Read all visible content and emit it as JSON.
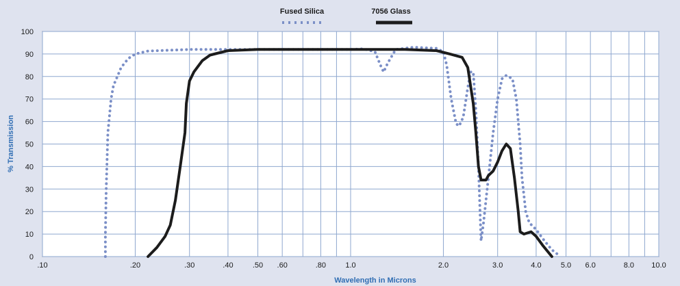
{
  "chart_data": {
    "type": "line",
    "title": "",
    "xlabel": "Wavelength in Microns",
    "ylabel": "% Transmission",
    "x_scale": "log",
    "xlim": [
      0.1,
      10.0
    ],
    "ylim": [
      0,
      100
    ],
    "grid": true,
    "legend_position": "top-center",
    "x_tick_labels": [
      {
        "value": 0.1,
        "label": ".10"
      },
      {
        "value": 0.2,
        "label": ".20"
      },
      {
        "value": 0.3,
        "label": ".30"
      },
      {
        "value": 0.4,
        "label": ".40"
      },
      {
        "value": 0.5,
        "label": ".50"
      },
      {
        "value": 0.6,
        "label": ".60"
      },
      {
        "value": 0.8,
        "label": ".80"
      },
      {
        "value": 1.0,
        "label": "1.0"
      },
      {
        "value": 2.0,
        "label": "2.0"
      },
      {
        "value": 3.0,
        "label": "3.0"
      },
      {
        "value": 4.0,
        "label": "4.0"
      },
      {
        "value": 5.0,
        "label": "5.0"
      },
      {
        "value": 6.0,
        "label": "6.0"
      },
      {
        "value": 8.0,
        "label": "8.0"
      },
      {
        "value": 10.0,
        "label": "10.0"
      }
    ],
    "y_ticks": [
      0,
      10,
      20,
      30,
      40,
      50,
      60,
      70,
      80,
      90,
      100
    ],
    "series": [
      {
        "name": "Fused Silica",
        "color": "#7b8fc7",
        "style": "dotted",
        "points": [
          [
            0.16,
            0
          ],
          [
            0.16,
            10
          ],
          [
            0.161,
            30
          ],
          [
            0.163,
            55
          ],
          [
            0.167,
            70
          ],
          [
            0.17,
            76
          ],
          [
            0.175,
            80
          ],
          [
            0.18,
            84
          ],
          [
            0.19,
            88
          ],
          [
            0.2,
            90
          ],
          [
            0.22,
            91.3
          ],
          [
            0.3,
            92
          ],
          [
            0.5,
            92
          ],
          [
            0.8,
            92
          ],
          [
            1.0,
            92
          ],
          [
            1.1,
            92.3
          ],
          [
            1.2,
            91
          ],
          [
            1.25,
            85
          ],
          [
            1.28,
            82
          ],
          [
            1.32,
            86
          ],
          [
            1.4,
            92
          ],
          [
            1.6,
            93
          ],
          [
            1.9,
            92.5
          ],
          [
            2.0,
            91
          ],
          [
            2.05,
            85
          ],
          [
            2.12,
            70
          ],
          [
            2.2,
            59
          ],
          [
            2.25,
            58
          ],
          [
            2.32,
            62
          ],
          [
            2.4,
            75
          ],
          [
            2.45,
            82
          ],
          [
            2.5,
            82
          ],
          [
            2.55,
            65
          ],
          [
            2.6,
            40
          ],
          [
            2.63,
            20
          ],
          [
            2.65,
            7
          ],
          [
            2.7,
            15
          ],
          [
            2.8,
            35
          ],
          [
            2.9,
            55
          ],
          [
            3.0,
            70
          ],
          [
            3.1,
            79
          ],
          [
            3.2,
            80.5
          ],
          [
            3.35,
            79
          ],
          [
            3.45,
            70
          ],
          [
            3.55,
            50
          ],
          [
            3.6,
            35
          ],
          [
            3.7,
            20
          ],
          [
            3.8,
            15
          ],
          [
            4.0,
            12
          ],
          [
            4.2,
            8
          ],
          [
            4.5,
            3
          ],
          [
            4.8,
            0
          ]
        ]
      },
      {
        "name": "7056 Glass",
        "color": "#1c1c1c",
        "style": "solid",
        "points": [
          [
            0.22,
            0
          ],
          [
            0.235,
            4
          ],
          [
            0.25,
            9
          ],
          [
            0.26,
            14
          ],
          [
            0.27,
            25
          ],
          [
            0.28,
            40
          ],
          [
            0.29,
            55
          ],
          [
            0.293,
            68
          ],
          [
            0.3,
            78
          ],
          [
            0.31,
            82
          ],
          [
            0.33,
            87
          ],
          [
            0.35,
            89.5
          ],
          [
            0.4,
            91.5
          ],
          [
            0.5,
            92
          ],
          [
            1.0,
            92
          ],
          [
            1.5,
            92
          ],
          [
            1.9,
            91.5
          ],
          [
            2.1,
            90
          ],
          [
            2.3,
            88.5
          ],
          [
            2.4,
            84
          ],
          [
            2.5,
            68
          ],
          [
            2.55,
            55
          ],
          [
            2.6,
            40
          ],
          [
            2.65,
            34
          ],
          [
            2.75,
            34
          ],
          [
            2.8,
            36
          ],
          [
            2.9,
            38
          ],
          [
            3.0,
            42
          ],
          [
            3.1,
            47
          ],
          [
            3.2,
            50
          ],
          [
            3.3,
            48
          ],
          [
            3.4,
            35
          ],
          [
            3.5,
            20
          ],
          [
            3.55,
            11
          ],
          [
            3.65,
            10
          ],
          [
            3.85,
            11
          ],
          [
            4.0,
            9
          ],
          [
            4.2,
            5
          ],
          [
            4.5,
            0
          ]
        ]
      }
    ]
  }
}
